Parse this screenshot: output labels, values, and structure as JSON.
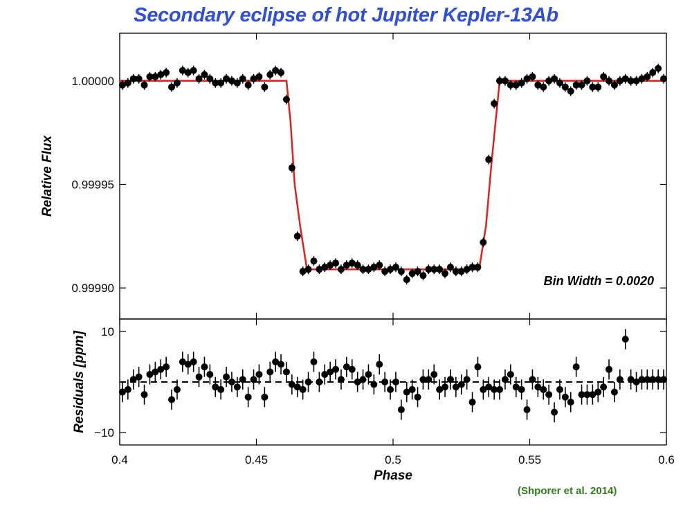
{
  "title": "Secondary eclipse of hot Jupiter Kepler-13Ab",
  "citation": "(Shporer et al. 2014)",
  "colors": {
    "title": "#2f4fd8",
    "citation": "#2e7d1a",
    "model": "#e0201c",
    "points": "#000000"
  },
  "chart_data": [
    {
      "type": "scatter",
      "panel": "top",
      "ylabel": "Relative Flux",
      "xlim": [
        0.4,
        0.6
      ],
      "ylim": [
        0.999885,
        1.000023
      ],
      "x_ticks": [
        "0.4",
        "0.45",
        "0.5",
        "0.55",
        "0.6"
      ],
      "y_ticks": [
        {
          "value": 1.0,
          "label": "1.00000"
        },
        {
          "value": 0.99995,
          "label": "0.99995"
        },
        {
          "value": 0.9999,
          "label": "0.99990"
        }
      ],
      "annotation": "Bin Width = 0.0020",
      "model": {
        "name": "eclipse model",
        "color": "#e0201c",
        "x": [
          0.4,
          0.461,
          0.4625,
          0.464,
          0.466,
          0.4685,
          0.469,
          0.531,
          0.5315,
          0.534,
          0.536,
          0.5375,
          0.539,
          0.6
        ],
        "y": [
          1.0,
          1.0,
          0.99998,
          0.99995,
          0.99993,
          0.999909,
          0.999909,
          0.999909,
          0.999909,
          0.99993,
          0.99996,
          0.99998,
          1.0,
          1.0
        ]
      },
      "series": [
        {
          "name": "binned flux",
          "x": [
            0.401,
            0.403,
            0.405,
            0.407,
            0.409,
            0.411,
            0.413,
            0.415,
            0.417,
            0.419,
            0.421,
            0.423,
            0.425,
            0.427,
            0.429,
            0.431,
            0.433,
            0.435,
            0.437,
            0.439,
            0.441,
            0.443,
            0.445,
            0.447,
            0.449,
            0.451,
            0.453,
            0.455,
            0.457,
            0.459,
            0.461,
            0.463,
            0.465,
            0.467,
            0.469,
            0.471,
            0.473,
            0.475,
            0.477,
            0.479,
            0.481,
            0.483,
            0.485,
            0.487,
            0.489,
            0.491,
            0.493,
            0.495,
            0.497,
            0.499,
            0.501,
            0.503,
            0.505,
            0.507,
            0.509,
            0.511,
            0.513,
            0.515,
            0.517,
            0.519,
            0.521,
            0.523,
            0.525,
            0.527,
            0.529,
            0.531,
            0.533,
            0.535,
            0.537,
            0.539,
            0.541,
            0.543,
            0.545,
            0.547,
            0.549,
            0.551,
            0.553,
            0.555,
            0.557,
            0.559,
            0.561,
            0.563,
            0.565,
            0.567,
            0.569,
            0.571,
            0.573,
            0.575,
            0.577,
            0.579,
            0.581,
            0.583,
            0.585,
            0.587,
            0.589,
            0.591,
            0.593,
            0.595,
            0.597,
            0.599
          ],
          "y": [
            0.999998,
            0.999999,
            1.000001,
            1.000001,
            0.999998,
            1.000002,
            1.000002,
            1.000003,
            1.000004,
            0.999997,
            0.999999,
            1.000005,
            1.000004,
            1.000005,
            1.000001,
            1.000003,
            1.000001,
            0.999999,
            0.999999,
            1.000001,
            1.0,
            0.999999,
            1.000001,
            0.999998,
            1.000001,
            1.000002,
            0.999997,
            1.000003,
            1.000005,
            1.000004,
            0.999991,
            0.999958,
            0.999925,
            0.999908,
            0.999909,
            0.999913,
            0.999909,
            0.99991,
            0.999911,
            0.999912,
            0.999909,
            0.999911,
            0.999912,
            0.999911,
            0.999909,
            0.999909,
            0.99991,
            0.999911,
            0.999908,
            0.999909,
            0.99991,
            0.999908,
            0.999904,
            0.999907,
            0.999908,
            0.999906,
            0.999909,
            0.999909,
            0.999909,
            0.999907,
            0.99991,
            0.999908,
            0.999908,
            0.999909,
            0.99991,
            0.99991,
            0.999922,
            0.999962,
            0.999989,
            1.0,
            1.0,
            0.999998,
            0.999998,
            0.999999,
            1.000001,
            1.000002,
            0.999998,
            0.999997,
            1.0,
            1.000001,
            0.999999,
            0.999997,
            0.999995,
            0.999998,
            0.999998,
            1.0,
            0.999997,
            0.999997,
            1.000002,
            1.0,
            0.999998,
            1.0,
            1.000001,
            1.0,
            1.0,
            1.000001,
            1.000002,
            1.000004,
            1.000006,
            1.000001
          ]
        }
      ]
    },
    {
      "type": "scatter",
      "panel": "bottom",
      "xlabel": "Phase",
      "ylabel": "Residuals [ppm]",
      "xlim": [
        0.4,
        0.6
      ],
      "ylim": [
        -12.5,
        12.5
      ],
      "x_ticks": [
        "0.4",
        "0.45",
        "0.5",
        "0.55",
        "0.6"
      ],
      "y_ticks": [
        {
          "value": 10,
          "label": "10"
        },
        {
          "value": -10,
          "label": "−10"
        }
      ],
      "reference_line": {
        "y": 0,
        "style": "dashed"
      },
      "series": [
        {
          "name": "residuals",
          "error_ppm": 2,
          "x": [
            0.401,
            0.403,
            0.405,
            0.407,
            0.409,
            0.411,
            0.413,
            0.415,
            0.417,
            0.419,
            0.421,
            0.423,
            0.425,
            0.427,
            0.429,
            0.431,
            0.433,
            0.435,
            0.437,
            0.439,
            0.441,
            0.443,
            0.445,
            0.447,
            0.449,
            0.451,
            0.453,
            0.455,
            0.457,
            0.459,
            0.461,
            0.463,
            0.465,
            0.467,
            0.469,
            0.471,
            0.473,
            0.475,
            0.477,
            0.479,
            0.481,
            0.483,
            0.485,
            0.487,
            0.489,
            0.491,
            0.493,
            0.495,
            0.497,
            0.499,
            0.501,
            0.503,
            0.505,
            0.507,
            0.509,
            0.511,
            0.513,
            0.515,
            0.517,
            0.519,
            0.521,
            0.523,
            0.525,
            0.527,
            0.529,
            0.531,
            0.533,
            0.535,
            0.537,
            0.539,
            0.541,
            0.543,
            0.545,
            0.547,
            0.549,
            0.551,
            0.553,
            0.555,
            0.557,
            0.559,
            0.561,
            0.563,
            0.565,
            0.567,
            0.569,
            0.571,
            0.573,
            0.575,
            0.577,
            0.579,
            0.581,
            0.583,
            0.585,
            0.587,
            0.589,
            0.591,
            0.593,
            0.595,
            0.597,
            0.599
          ],
          "y": [
            -2,
            -1.5,
            0.5,
            1,
            -2.5,
            1.5,
            2,
            2.5,
            3,
            -3.5,
            -1.5,
            4,
            3.5,
            4,
            1,
            3,
            1.5,
            -1,
            -1.5,
            1,
            0,
            -1,
            0.5,
            -3,
            0.5,
            1.5,
            -3,
            2,
            4,
            3.5,
            2,
            -0.5,
            -1,
            -1.5,
            0,
            4,
            0,
            1.5,
            2,
            2.5,
            0.5,
            3,
            2.5,
            0,
            0.5,
            1.5,
            -0.5,
            3.5,
            0,
            -1.5,
            0,
            -5.5,
            -2,
            -1.5,
            -3,
            0.5,
            0.5,
            1.5,
            -1.5,
            -1,
            0.5,
            -1,
            -0.5,
            0.5,
            -4,
            3,
            -1.5,
            -1,
            -1.5,
            -1.5,
            0.5,
            1.5,
            -1,
            -1.5,
            -5.5,
            0.5,
            -1,
            -1.5,
            -2.5,
            -6,
            -1.5,
            -3,
            -4,
            3,
            -2.5,
            -2.5,
            -2.5,
            -2,
            -1,
            2.5,
            -2,
            0.5,
            8.5,
            0.5,
            0,
            0.5,
            0.5,
            0.5,
            0.5,
            0.5
          ]
        }
      ]
    }
  ]
}
